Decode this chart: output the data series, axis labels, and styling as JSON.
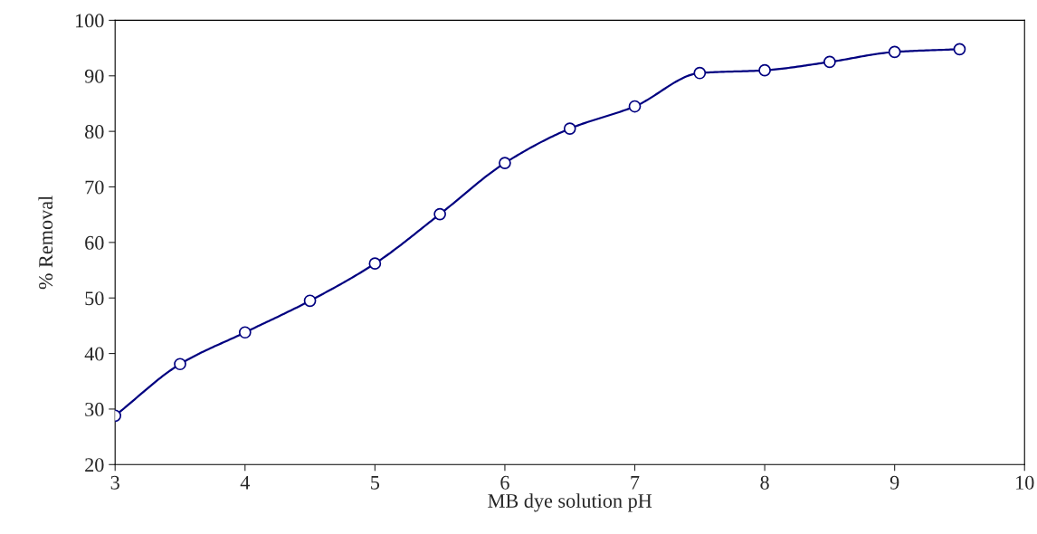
{
  "chart_data": {
    "type": "line",
    "xlabel": "MB dye solution pH",
    "ylabel": "% Removal",
    "x": [
      3,
      3.5,
      4,
      4.5,
      5,
      5.5,
      6,
      6.5,
      7,
      7.5,
      8,
      8.5,
      9,
      9.5
    ],
    "series": [
      {
        "color": "#000080",
        "values": [
          28.8,
          38.1,
          43.8,
          49.5,
          56.2,
          65.1,
          74.3,
          80.5,
          84.5,
          90.5,
          91.0,
          92.5,
          94.3,
          94.8
        ]
      }
    ],
    "xlim": [
      3,
      10
    ],
    "xticks": [
      3,
      4,
      5,
      6,
      7,
      8,
      9,
      10
    ],
    "ylim": [
      20,
      100
    ],
    "yticks": [
      20,
      30,
      40,
      50,
      60,
      70,
      80,
      90,
      100
    ],
    "grid": false,
    "legend": false,
    "marker": "circle",
    "line_style": "solid"
  }
}
